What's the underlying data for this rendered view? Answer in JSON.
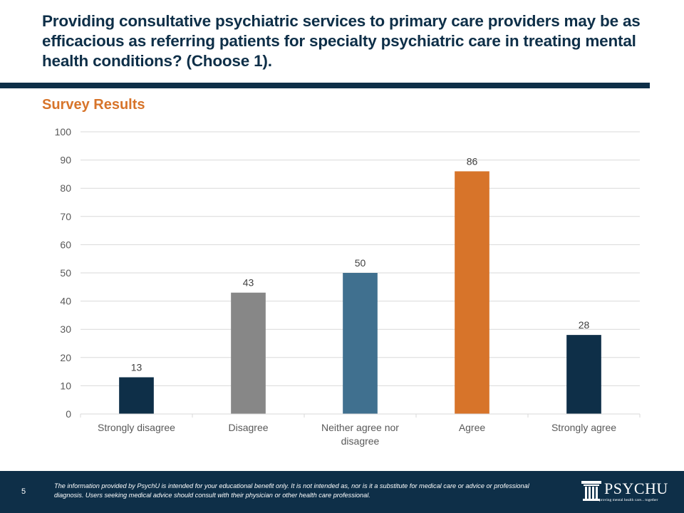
{
  "slide": {
    "title": "Providing consultative psychiatric services to primary care providers may be as efficacious as referring patients for specialty psychiatric care in treating mental health conditions? (Choose 1).",
    "subtitle": "Survey Results",
    "page_number": "5"
  },
  "footer": {
    "disclaimer": "The information provided by PsychU is intended for your educational benefit only. It is not intended as, nor is it a substitute for medical care or advice or professional diagnosis. Users seeking medical advice should consult with their physician or other health care professional.",
    "logo_text": "PSYCHU",
    "logo_tagline": "Improving mental health care... together"
  },
  "colors": {
    "navy": "#0e2f48",
    "orange": "#d7742a",
    "gray": "#878787",
    "steel_blue": "#40708f"
  },
  "chart_data": {
    "type": "bar",
    "title": "Survey Results",
    "xlabel": "",
    "ylabel": "",
    "categories": [
      "Strongly disagree",
      "Disagree",
      "Neither agree nor disagree",
      "Agree",
      "Strongly agree"
    ],
    "values": [
      13,
      43,
      50,
      86,
      28
    ],
    "bar_colors": [
      "#0e2f48",
      "#878787",
      "#40708f",
      "#d7742a",
      "#0e2f48"
    ],
    "ylim": [
      0,
      100
    ],
    "yticks": [
      0,
      10,
      20,
      30,
      40,
      50,
      60,
      70,
      80,
      90,
      100
    ],
    "grid": true,
    "data_labels": true,
    "legend": "none"
  }
}
